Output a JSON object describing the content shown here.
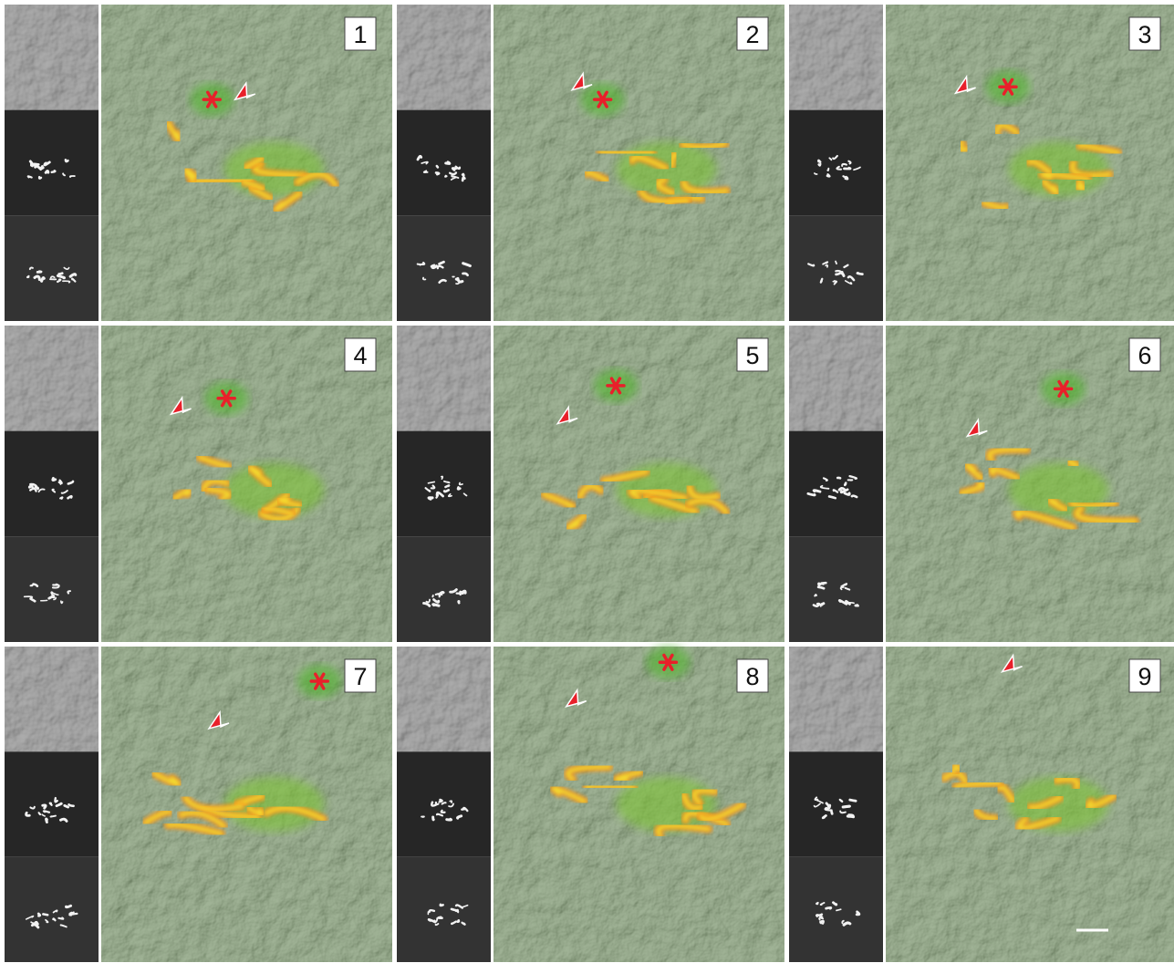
{
  "panels": [
    {
      "label": "1"
    },
    {
      "label": "2"
    },
    {
      "label": "3"
    },
    {
      "label": "4"
    },
    {
      "label": "5"
    },
    {
      "label": "6"
    },
    {
      "label": "7"
    },
    {
      "label": "8"
    },
    {
      "label": "9"
    }
  ]
}
